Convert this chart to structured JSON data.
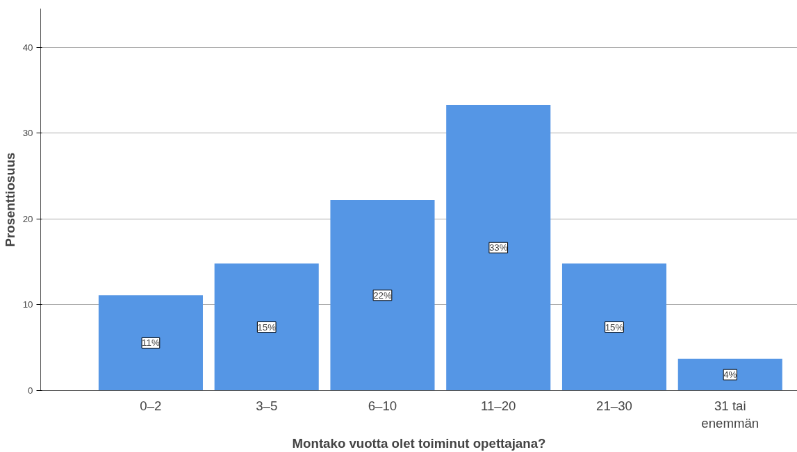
{
  "chart_data": {
    "type": "bar",
    "xlabel": "Montako vuotta olet toiminut opettajana?",
    "ylabel": "Prosenttiosuus",
    "categories": [
      "0–2",
      "3–5",
      "6–10",
      "11–20",
      "21–30",
      "31 tai\nenemmän"
    ],
    "values": [
      11.1,
      14.8,
      22.2,
      33.3,
      14.8,
      3.7
    ],
    "value_labels": [
      "11%",
      "15%",
      "22%",
      "33%",
      "15%",
      "4%"
    ],
    "color": "#5596e5",
    "ylim": [
      0,
      44.5
    ],
    "yticks": [
      0,
      10,
      20,
      30,
      40
    ],
    "grid": "y"
  }
}
